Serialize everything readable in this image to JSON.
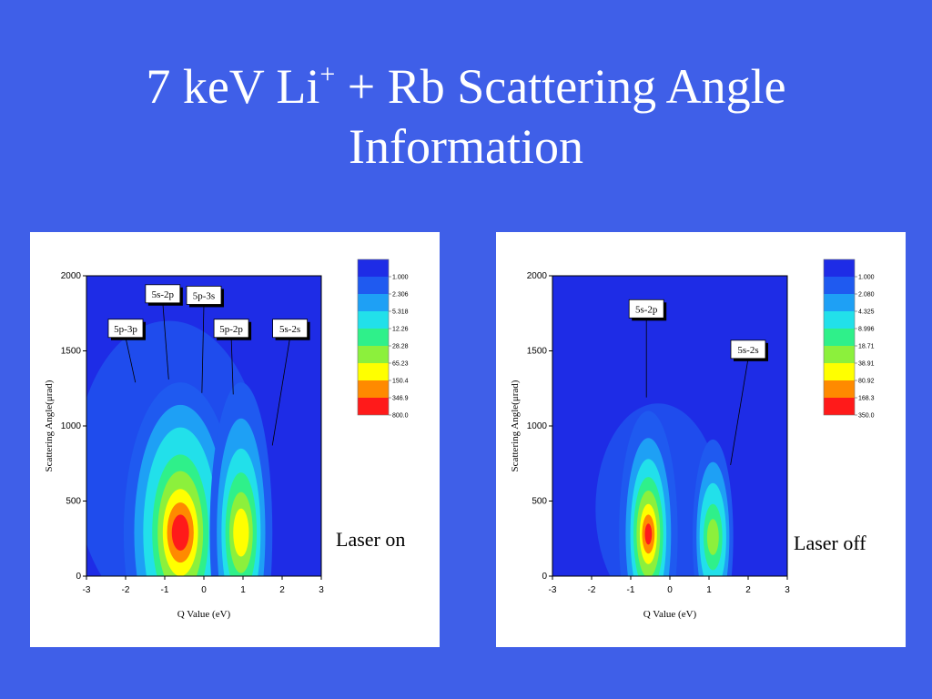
{
  "slide": {
    "title_line1": "7 keV Li",
    "title_sup": "+",
    "title_line1_rest": " + Rb Scattering Angle",
    "title_line2": "Information"
  },
  "colors": {
    "background": "#3f5fe8",
    "plot_base": "#1e2ce6",
    "contour_levels": [
      "#1f5af0",
      "#1ea0f5",
      "#22e0ea",
      "#2ff08a",
      "#8cf03c",
      "#ffff00",
      "#ff8a00",
      "#ff1a1a"
    ]
  },
  "chart_data": [
    {
      "type": "heatmap",
      "caption": "Laser on",
      "xlabel": "Q Value (eV)",
      "ylabel": "Scattering Angle(μrad)",
      "xlim": [
        -3,
        3
      ],
      "ylim": [
        0,
        2000
      ],
      "x_ticks": [
        "-3",
        "-2",
        "-1",
        "0",
        "1",
        "2",
        "3"
      ],
      "y_ticks": [
        "0",
        "500",
        "1000",
        "1500",
        "2000"
      ],
      "legend_levels": [
        "1.000",
        "2.306",
        "5.318",
        "12.26",
        "28.28",
        "65.23",
        "150.4",
        "346.9",
        "800.0"
      ],
      "annotations": [
        {
          "label": "5s-2p",
          "x": -1.05,
          "y": 1880,
          "tip_x": -0.9,
          "tip_y": 1310
        },
        {
          "label": "5p-3s",
          "x": 0.0,
          "y": 1870,
          "tip_x": -0.05,
          "tip_y": 1220
        },
        {
          "label": "5p-3p",
          "x": -2.0,
          "y": 1650,
          "tip_x": -1.75,
          "tip_y": 1290
        },
        {
          "label": "5p-2p",
          "x": 0.7,
          "y": 1650,
          "tip_x": 0.75,
          "tip_y": 1210
        },
        {
          "label": "5s-2s",
          "x": 2.2,
          "y": 1650,
          "tip_x": 1.75,
          "tip_y": 870
        }
      ],
      "peaks": [
        {
          "name": "primary",
          "x_center": -0.6,
          "y_center": 290,
          "max_level": 8
        },
        {
          "name": "secondary",
          "x_center": 0.95,
          "y_center": 290,
          "max_level": 6
        }
      ]
    },
    {
      "type": "heatmap",
      "caption": "Laser off",
      "xlabel": "Q Value (eV)",
      "ylabel": "Scattering Angle(μrad)",
      "xlim": [
        -3,
        3
      ],
      "ylim": [
        0,
        2000
      ],
      "x_ticks": [
        "-3",
        "-2",
        "-1",
        "0",
        "1",
        "2",
        "3"
      ],
      "y_ticks": [
        "0",
        "500",
        "1000",
        "1500",
        "2000"
      ],
      "legend_levels": [
        "1.000",
        "2.080",
        "4.325",
        "8.996",
        "18.71",
        "38.91",
        "80.92",
        "168.3",
        "350.0"
      ],
      "annotations": [
        {
          "label": "5s-2p",
          "x": -0.6,
          "y": 1780,
          "tip_x": -0.6,
          "tip_y": 1190
        },
        {
          "label": "5s-2s",
          "x": 2.0,
          "y": 1510,
          "tip_x": 1.55,
          "tip_y": 740
        }
      ],
      "peaks": [
        {
          "name": "primary",
          "x_center": -0.55,
          "y_center": 280,
          "max_level": 8
        },
        {
          "name": "secondary",
          "x_center": 1.1,
          "y_center": 260,
          "max_level": 5
        }
      ]
    }
  ]
}
